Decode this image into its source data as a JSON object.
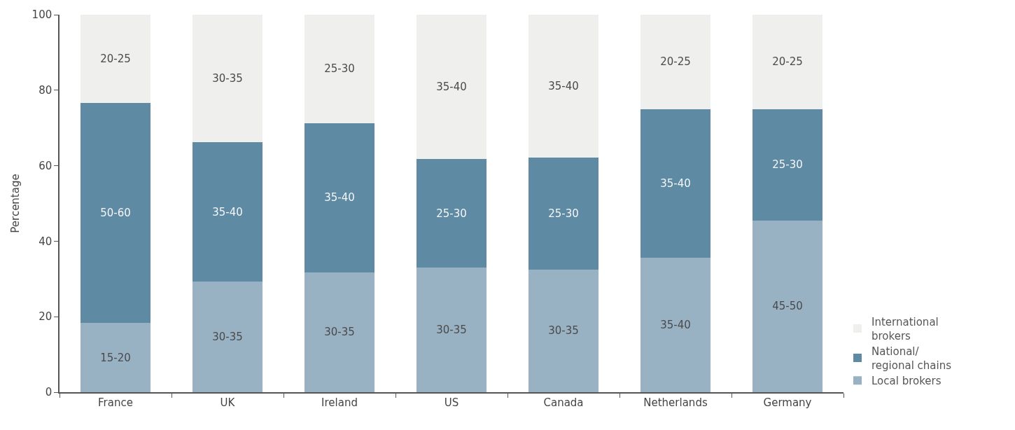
{
  "chart_data": {
    "type": "bar",
    "stacked": true,
    "ylabel": "Percentage",
    "categories": [
      "France",
      "UK",
      "Ireland",
      "US",
      "Canada",
      "Netherlands",
      "Germany"
    ],
    "series": [
      {
        "name": "Local brokers",
        "color": "#98b2c4",
        "values": [
          18.3,
          29.3,
          31.8,
          33.0,
          32.5,
          35.6,
          45.5
        ],
        "value_labels": [
          "15-20",
          "30-35",
          "30-35",
          "30-35",
          "30-35",
          "35-40",
          "45-50"
        ]
      },
      {
        "name": "National/ regional chains",
        "color": "#5e8aa3",
        "values": [
          58.4,
          36.9,
          39.5,
          28.8,
          29.6,
          39.4,
          29.5
        ],
        "value_labels": [
          "50-60",
          "35-40",
          "35-40",
          "25-30",
          "25-30",
          "35-40",
          "25-30"
        ]
      },
      {
        "name": "International brokers",
        "color": "#efefed",
        "values": [
          23.3,
          33.8,
          28.7,
          38.2,
          37.9,
          25.0,
          25.0
        ],
        "value_labels": [
          "20-25",
          "30-35",
          "25-30",
          "35-40",
          "35-40",
          "20-25",
          "20-25"
        ]
      }
    ],
    "ylim": [
      0,
      100
    ],
    "yticks": [
      0,
      20,
      40,
      60,
      80,
      100
    ],
    "grid": false,
    "legend": "bottom right"
  }
}
